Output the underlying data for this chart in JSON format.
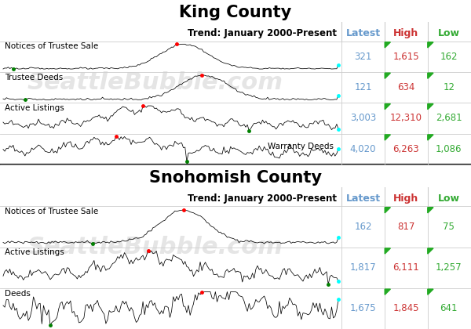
{
  "king_title": "King County",
  "snohomish_title": "Snohomish County",
  "trend_label": "Trend: January 2000-Present",
  "col_latest": "Latest",
  "col_high": "High",
  "col_low": "Low",
  "latest_color": "#6699CC",
  "high_color": "#CC3333",
  "low_color": "#33AA33",
  "bg_color": "#FFFFFF",
  "grid_color": "#CCCCCC",
  "king_rows": [
    {
      "label": "Notices of Trustee Sale",
      "label_right": false,
      "latest": "321",
      "high": "1,615",
      "low": "162"
    },
    {
      "label": "Trustee Deeds",
      "label_right": false,
      "latest": "121",
      "high": "634",
      "low": "12"
    },
    {
      "label": "Active Listings",
      "label_right": false,
      "latest": "3,003",
      "high": "12,310",
      "low": "2,681"
    },
    {
      "label": "Warranty Deeds",
      "label_right": true,
      "latest": "4,020",
      "high": "6,263",
      "low": "1,086"
    }
  ],
  "snohomish_rows": [
    {
      "label": "Notices of Trustee Sale",
      "label_right": false,
      "latest": "162",
      "high": "817",
      "low": "75"
    },
    {
      "label": "Active Listings",
      "label_right": false,
      "latest": "1,817",
      "high": "6,111",
      "low": "1,257"
    },
    {
      "label": "Deeds",
      "label_right": false,
      "latest": "1,675",
      "high": "1,845",
      "low": "641"
    }
  ],
  "watermark_text": "SeattleBubble.com"
}
